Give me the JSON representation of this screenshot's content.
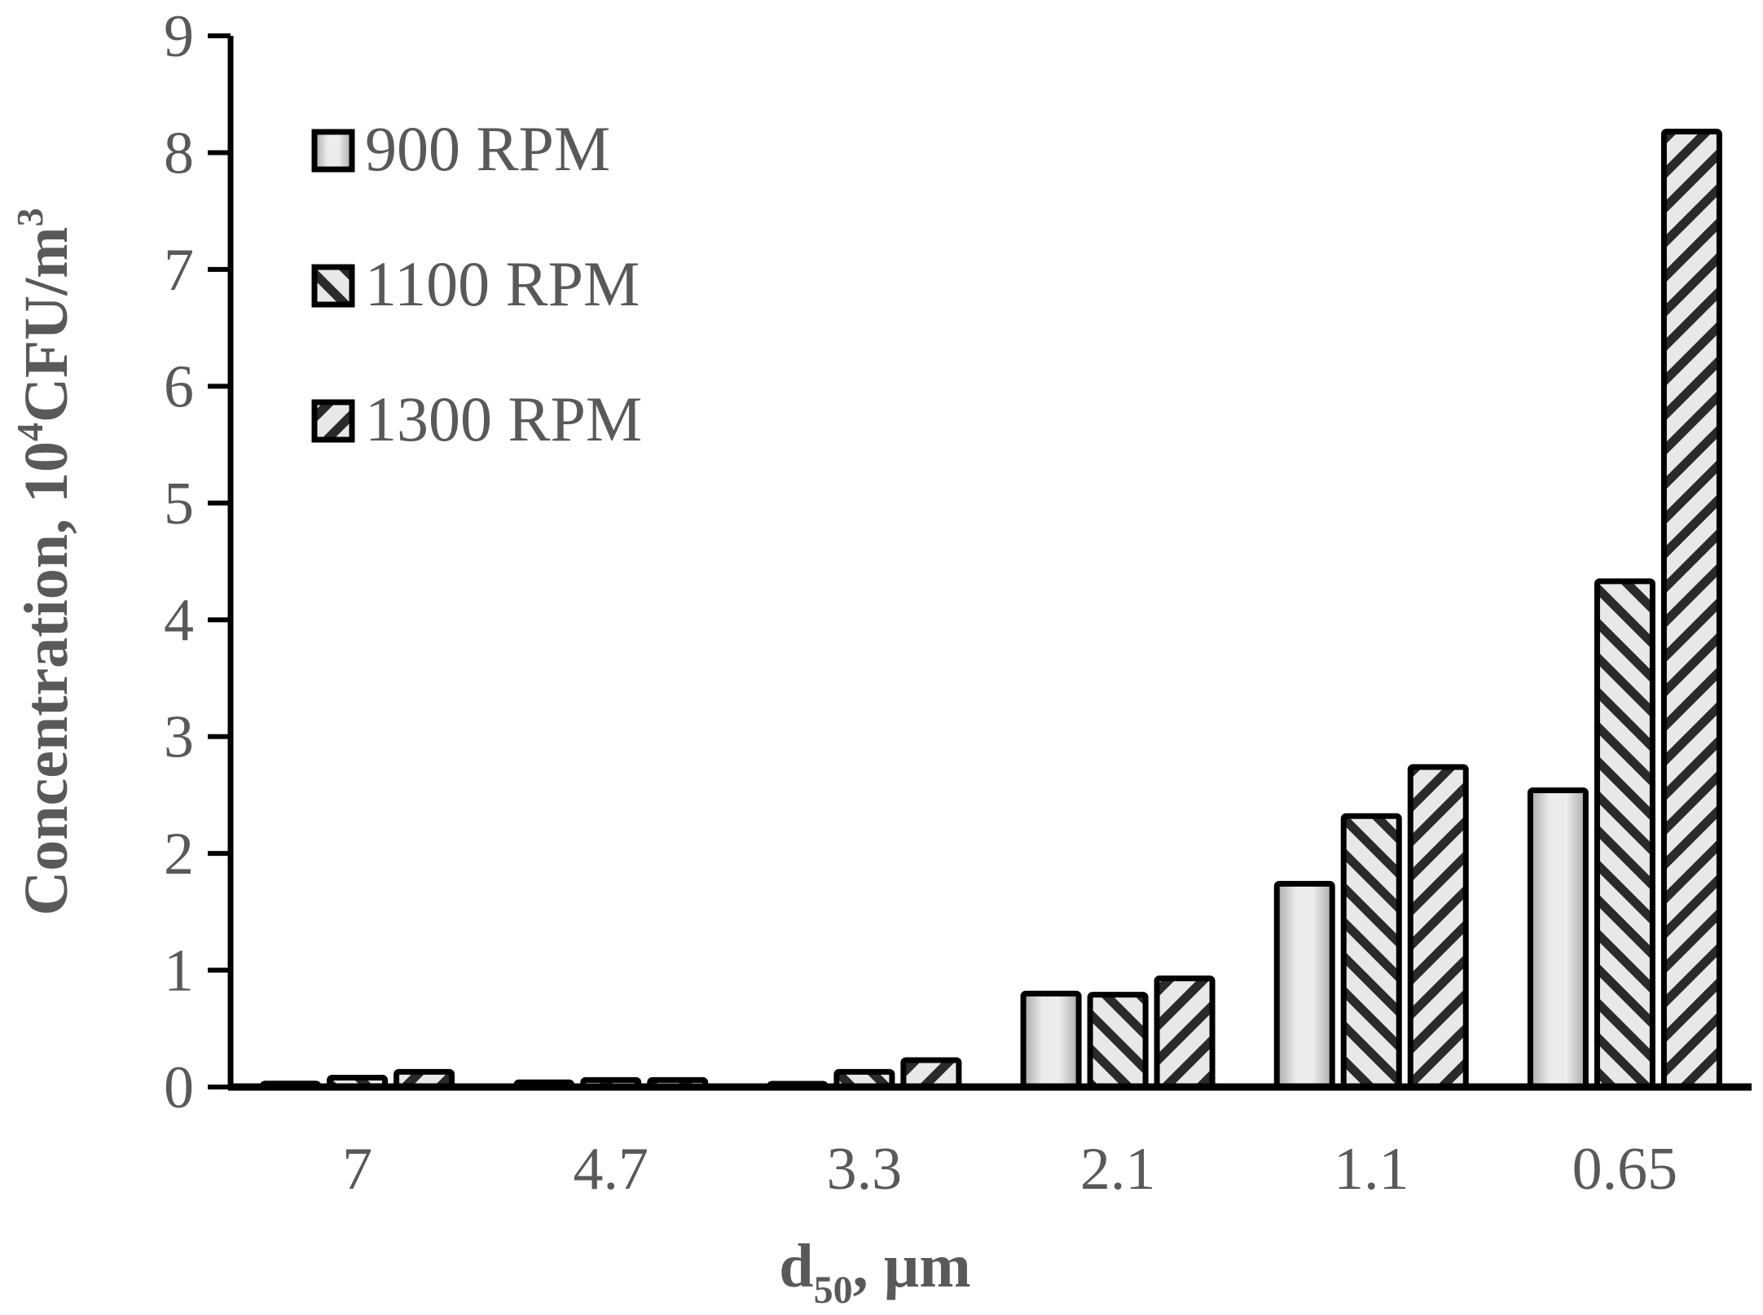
{
  "chart_data": {
    "type": "bar",
    "categories": [
      "7",
      "4.7",
      "3.3",
      "2.1",
      "1.1",
      "0.65"
    ],
    "series": [
      {
        "name": "900 RPM",
        "values": [
          0.03,
          0.04,
          0.02,
          0.8,
          1.74,
          2.54
        ],
        "pattern": "pat-900"
      },
      {
        "name": "1100 RPM",
        "values": [
          0.08,
          0.06,
          0.13,
          0.79,
          2.32,
          4.33
        ],
        "pattern": "pat-1100"
      },
      {
        "name": "1300 RPM",
        "values": [
          0.13,
          0.06,
          0.23,
          0.93,
          2.74,
          8.18
        ],
        "pattern": "pat-1300"
      }
    ],
    "yticks": [
      "0",
      "1",
      "2",
      "3",
      "4",
      "5",
      "6",
      "7",
      "8",
      "9"
    ],
    "ylim": [
      0,
      9
    ],
    "xlabel": {
      "prefix": "d",
      "subscript": "50",
      "suffix": ", µm"
    },
    "ylabel": {
      "prefix": "Concentration, 10",
      "superscript": "4",
      "middle": "CFU/m",
      "superscript2": "3"
    },
    "legend_position": "top-left",
    "grid": false,
    "colors": {
      "text": "#595959",
      "axis": "#000000",
      "bar_outline": "#000000",
      "bar_fill_light": "#e6e6e6",
      "hatch_dark": "#2a2a2a"
    }
  }
}
